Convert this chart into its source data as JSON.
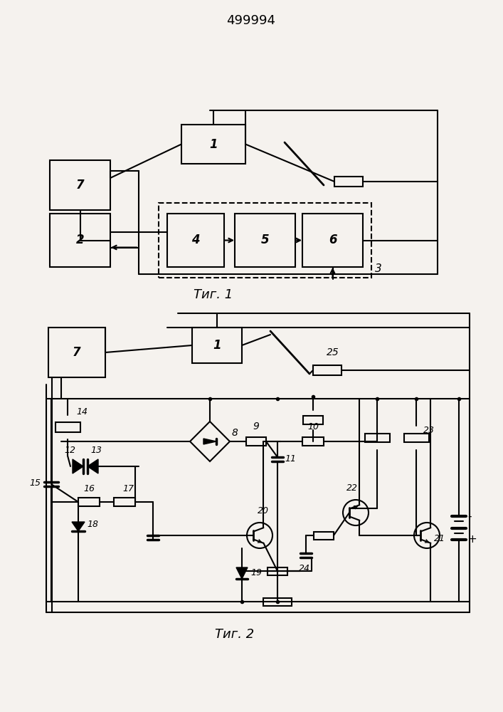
{
  "title": "499994",
  "fig1_label": "Τиг. 1",
  "fig2_label": "Τиг. 2",
  "bg_color": "#f5f2ee",
  "line_color": "#000000",
  "lw": 1.5
}
